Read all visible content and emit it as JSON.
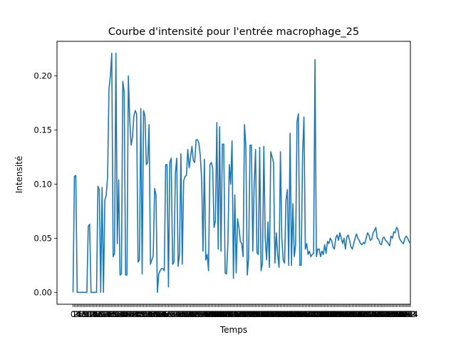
{
  "chart_data": {
    "type": "line",
    "title": "Courbe d'intensité pour l'entrée macrophage_25",
    "xlabel": "Temps",
    "ylabel": "Intensité",
    "xlim": [
      -11.6,
      244
    ],
    "ylim": [
      -0.011,
      0.232
    ],
    "yticks": [
      0.0,
      0.05,
      0.1,
      0.15,
      0.2
    ],
    "ytick_labels": [
      "0.00",
      "0.05",
      "0.10",
      "0.15",
      "0.20"
    ],
    "grid": false,
    "color": "#1f77b4",
    "series": [
      {
        "values": [
          0.0,
          0.107,
          0.108,
          0.0,
          0.0,
          0.0,
          0.0,
          0.0,
          0.0,
          0.0,
          0.0,
          0.061,
          0.063,
          0.0,
          0.0,
          0.0,
          0.0,
          0.0,
          0.098,
          0.095,
          0.0,
          0.097,
          0.0,
          0.085,
          0.09,
          0.107,
          0.188,
          0.2,
          0.221,
          0.033,
          0.036,
          0.221,
          0.045,
          0.104,
          0.016,
          0.017,
          0.195,
          0.185,
          0.016,
          0.016,
          0.2,
          0.16,
          0.136,
          0.143,
          0.163,
          0.168,
          0.165,
          0.028,
          0.03,
          0.17,
          0.017,
          0.168,
          0.163,
          0.118,
          0.12,
          0.155,
          0.026,
          0.03,
          0.034,
          0.096,
          0.09,
          0.0,
          0.017,
          0.02,
          0.022,
          0.022,
          0.02,
          0.118,
          0.118,
          0.005,
          0.12,
          0.124,
          0.026,
          0.028,
          0.11,
          0.124,
          0.024,
          0.035,
          0.128,
          0.026,
          0.103,
          0.107,
          0.108,
          0.132,
          0.115,
          0.125,
          0.135,
          0.122,
          0.12,
          0.141,
          0.141,
          0.138,
          0.127,
          0.105,
          0.038,
          0.123,
          0.03,
          0.035,
          0.02,
          0.118,
          0.12,
          0.115,
          0.06,
          0.066,
          0.157,
          0.04,
          0.153,
          0.038,
          0.137,
          0.137,
          0.018,
          0.017,
          0.045,
          0.118,
          0.1,
          0.14,
          0.013,
          0.09,
          0.018,
          0.068,
          0.06,
          0.047,
          0.045,
          0.033,
          0.155,
          0.135,
          0.016,
          0.032,
          0.136,
          0.136,
          0.038,
          0.099,
          0.132,
          0.037,
          0.035,
          0.134,
          0.02,
          0.027,
          0.135,
          0.05,
          0.03,
          0.065,
          0.023,
          0.13,
          0.125,
          0.12,
          0.027,
          0.055,
          0.035,
          0.023,
          0.13,
          0.05,
          0.03,
          0.027,
          0.085,
          0.095,
          0.025,
          0.147,
          0.025,
          0.082,
          0.033,
          0.044,
          0.158,
          0.165,
          0.025,
          0.025,
          0.127,
          0.162,
          0.04,
          0.045,
          0.035,
          0.038,
          0.033,
          0.035,
          0.036,
          0.215,
          0.033,
          0.04,
          0.04,
          0.033,
          0.038,
          0.035,
          0.044,
          0.036,
          0.047,
          0.045,
          0.05,
          0.048,
          0.042,
          0.04,
          0.05,
          0.053,
          0.048,
          0.055,
          0.05,
          0.045,
          0.05,
          0.04,
          0.051,
          0.053,
          0.048,
          0.042,
          0.04,
          0.045,
          0.05,
          0.054,
          0.05,
          0.048,
          0.045,
          0.044,
          0.046,
          0.045,
          0.05,
          0.055,
          0.053,
          0.048,
          0.049,
          0.055,
          0.057,
          0.06,
          0.05,
          0.049,
          0.045,
          0.044,
          0.05,
          0.051,
          0.048,
          0.047,
          0.045,
          0.043,
          0.052,
          0.05,
          0.056,
          0.055,
          0.06,
          0.058,
          0.05,
          0.048,
          0.046,
          0.045,
          0.05,
          0.052,
          0.05,
          0.047,
          0.045
        ]
      }
    ]
  }
}
